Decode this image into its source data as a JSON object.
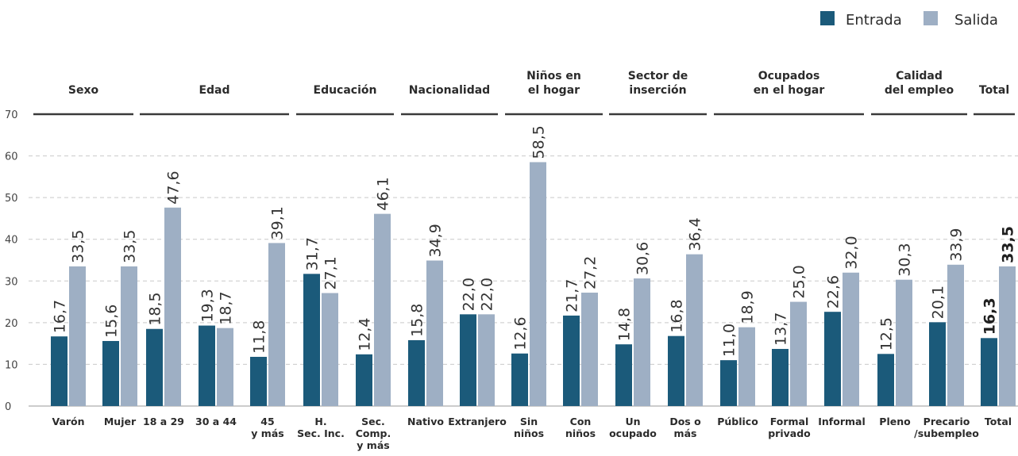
{
  "colors": {
    "entrada": "#1b5a7a",
    "salida": "#9eafc4"
  },
  "legend": {
    "entrada": "Entrada",
    "salida": "Salida"
  },
  "chart_data": {
    "type": "bar",
    "ylim": [
      0,
      70
    ],
    "yticks": [
      "0",
      "10",
      "20",
      "30",
      "40",
      "50",
      "60",
      "70"
    ],
    "grid": true,
    "legend_position": "top-right",
    "series": [
      {
        "name": "Entrada",
        "color": "#1b5a7a"
      },
      {
        "name": "Salida",
        "color": "#9eafc4"
      }
    ],
    "groups": [
      {
        "label": [
          "Sexo"
        ],
        "categories": [
          {
            "label": [
              "Varón"
            ],
            "entrada": 16.7,
            "salida": 33.5,
            "entrada_label": "16,7",
            "salida_label": "33,5"
          },
          {
            "label": [
              "Mujer"
            ],
            "entrada": 15.6,
            "salida": 33.5,
            "entrada_label": "15,6",
            "salida_label": "33,5"
          }
        ]
      },
      {
        "label": [
          "Edad"
        ],
        "categories": [
          {
            "label": [
              "18 a 29"
            ],
            "entrada": 18.5,
            "salida": 47.6,
            "entrada_label": "18,5",
            "salida_label": "47,6"
          },
          {
            "label": [
              "30 a 44"
            ],
            "entrada": 19.3,
            "salida": 18.7,
            "entrada_label": "19,3",
            "salida_label": "18,7"
          },
          {
            "label": [
              "45",
              "y más"
            ],
            "entrada": 11.8,
            "salida": 39.1,
            "entrada_label": "11,8",
            "salida_label": "39,1"
          }
        ]
      },
      {
        "label": [
          "Educación"
        ],
        "categories": [
          {
            "label": [
              "H.",
              "Sec. Inc."
            ],
            "entrada": 31.7,
            "salida": 27.1,
            "entrada_label": "31,7",
            "salida_label": "27,1"
          },
          {
            "label": [
              "Sec.",
              "Comp.",
              "y más"
            ],
            "entrada": 12.4,
            "salida": 46.1,
            "entrada_label": "12,4",
            "salida_label": "46,1"
          }
        ]
      },
      {
        "label": [
          "Nacionalidad"
        ],
        "categories": [
          {
            "label": [
              "Nativo"
            ],
            "entrada": 15.8,
            "salida": 34.9,
            "entrada_label": "15,8",
            "salida_label": "34,9"
          },
          {
            "label": [
              "Extranjero"
            ],
            "entrada": 22.0,
            "salida": 22.0,
            "entrada_label": "22,0",
            "salida_label": "22,0"
          }
        ]
      },
      {
        "label": [
          "Niños en",
          "el hogar"
        ],
        "categories": [
          {
            "label": [
              "Sin",
              "niños"
            ],
            "entrada": 12.6,
            "salida": 58.5,
            "entrada_label": "12,6",
            "salida_label": "58,5"
          },
          {
            "label": [
              "Con",
              "niños"
            ],
            "entrada": 21.7,
            "salida": 27.2,
            "entrada_label": "21,7",
            "salida_label": "27,2"
          }
        ]
      },
      {
        "label": [
          "Sector de",
          "inserción"
        ],
        "categories": [
          {
            "label": [
              "Un",
              "ocupado"
            ],
            "entrada": 14.8,
            "salida": 30.6,
            "entrada_label": "14,8",
            "salida_label": "30,6"
          },
          {
            "label": [
              "Dos o",
              "más"
            ],
            "entrada": 16.8,
            "salida": 36.4,
            "entrada_label": "16,8",
            "salida_label": "36,4"
          }
        ]
      },
      {
        "label": [
          "Ocupados",
          "en el hogar"
        ],
        "categories": [
          {
            "label": [
              "Público"
            ],
            "entrada": 11.0,
            "salida": 18.9,
            "entrada_label": "11,0",
            "salida_label": "18,9"
          },
          {
            "label": [
              "Formal",
              "privado"
            ],
            "entrada": 13.7,
            "salida": 25.0,
            "entrada_label": "13,7",
            "salida_label": "25,0"
          },
          {
            "label": [
              "Informal"
            ],
            "entrada": 22.6,
            "salida": 32.0,
            "entrada_label": "22,6",
            "salida_label": "32,0"
          }
        ]
      },
      {
        "label": [
          "Calidad",
          "del empleo"
        ],
        "categories": [
          {
            "label": [
              "Pleno"
            ],
            "entrada": 12.5,
            "salida": 30.3,
            "entrada_label": "12,5",
            "salida_label": "30,3"
          },
          {
            "label": [
              "Precario",
              "/subempleo"
            ],
            "entrada": 20.1,
            "salida": 33.9,
            "entrada_label": "20,1",
            "salida_label": "33,9"
          }
        ]
      },
      {
        "label": [
          "Total"
        ],
        "bold_values": true,
        "categories": [
          {
            "label": [
              "Total"
            ],
            "entrada": 16.3,
            "salida": 33.5,
            "entrada_label": "16,3",
            "salida_label": "33,5"
          }
        ]
      }
    ]
  }
}
